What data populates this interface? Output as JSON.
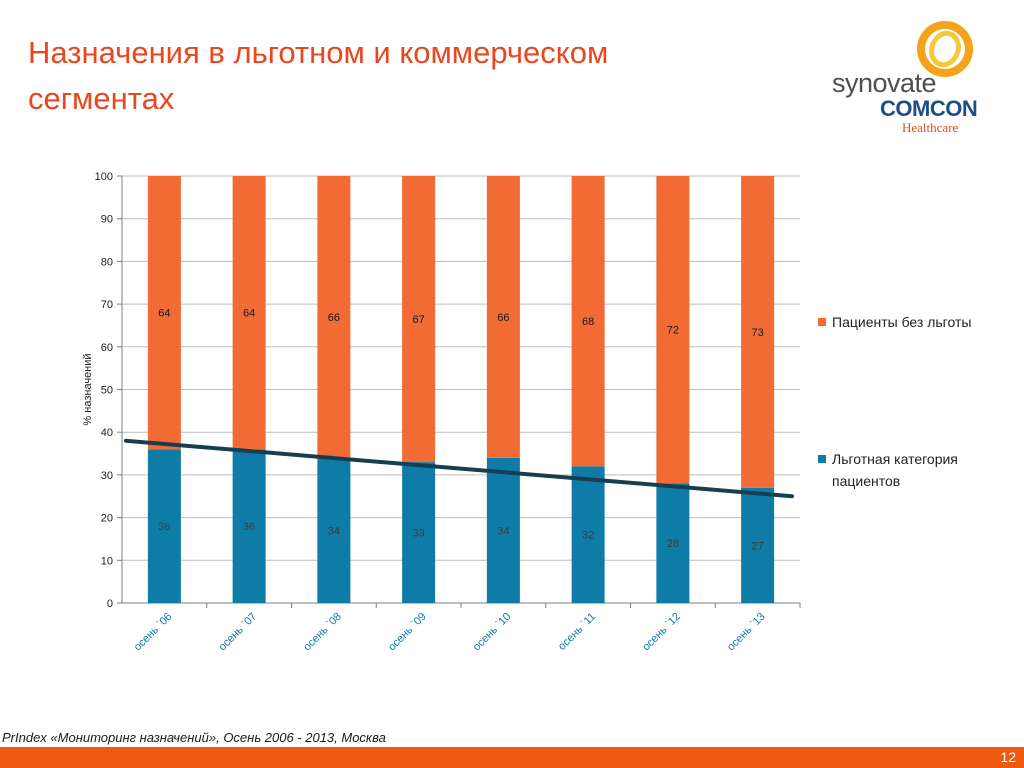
{
  "slide": {
    "title": "Назначения в льготном и коммерческом сегментах",
    "source": "PrIndex «Мониторинг назначений», Осень 2006 - 2013, Москва",
    "page_number": "12"
  },
  "logo": {
    "line1": "synovate",
    "line2": "COMCON",
    "line3": "Healthcare",
    "colors": {
      "ring_outer": "#f5a31a",
      "ring_inner": "#f7c83a",
      "text": "#4f4f4f",
      "comcon": "#1e4d8c",
      "healthcare": "#e8481f"
    }
  },
  "colors": {
    "title": "#e8481f",
    "benefit": "#0e7ca6",
    "non_benefit": "#f26b35",
    "trend": "#163e52",
    "footer": "#ee5a12"
  },
  "chart_data": {
    "type": "bar",
    "stacked": true,
    "categories": [
      "осень `06",
      "осень `07",
      "осень `08",
      "осень `09",
      "осень `10",
      "осень `11",
      "осень `12",
      "осень `13"
    ],
    "series": [
      {
        "name": "Льготная категория пациентов",
        "values": [
          36,
          36,
          34,
          33,
          34,
          32,
          28,
          27
        ],
        "color": "#0e7ca6"
      },
      {
        "name": "Пациенты без льготы",
        "values": [
          64,
          64,
          66,
          67,
          66,
          68,
          72,
          73
        ],
        "color": "#f26b35"
      }
    ],
    "trendline": {
      "series": "Льготная категория пациентов",
      "start": 38,
      "end": 25
    },
    "title": "",
    "xlabel": "",
    "ylabel": "% назначений",
    "ylim": [
      0,
      100
    ],
    "yticks": [
      0,
      10,
      20,
      30,
      40,
      50,
      60,
      70,
      80,
      90,
      100
    ],
    "grid": true,
    "legend_position": "right"
  }
}
